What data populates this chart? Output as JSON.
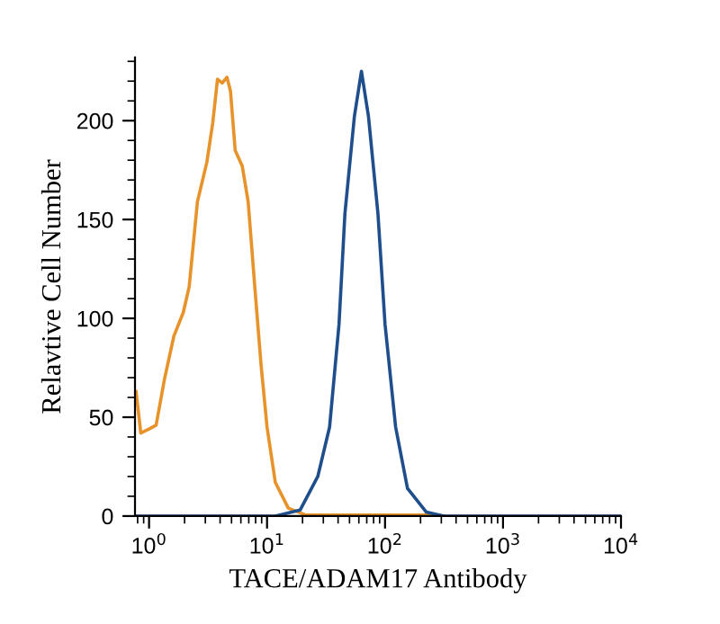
{
  "chart_data": {
    "type": "line",
    "xlabel": "TACE/ADAM17 Antibody",
    "ylabel": "Relavtive Cell Number",
    "log": "x",
    "xlim": [
      0.76,
      10000
    ],
    "ylim": [
      0,
      232
    ],
    "xticks": [
      {
        "value": 1,
        "label": "10$^{0}$"
      },
      {
        "value": 10,
        "label": "10$^{1}$"
      },
      {
        "value": 100,
        "label": "10$^{2}$"
      },
      {
        "value": 1000,
        "label": "10$^{3}$"
      },
      {
        "value": 10000,
        "label": "10$^{4}$"
      }
    ],
    "yticks": [
      0,
      50,
      100,
      150,
      200
    ],
    "grid": false,
    "legend": false,
    "marker": "none",
    "line_style": "solid",
    "series": [
      {
        "color": "#e8922a",
        "x": [
          0.776,
          0.851,
          1,
          1.148,
          1.349,
          1.622,
          1.95,
          2.188,
          2.57,
          3.09,
          3.467,
          3.802,
          4.169,
          4.571,
          4.898,
          5.37,
          6.166,
          6.918,
          7.943,
          8.913,
          10,
          11.75,
          15.14,
          21.38,
          251,
          316
        ],
        "values": [
          63,
          42,
          44,
          46,
          69,
          91,
          103,
          116,
          159,
          179,
          199,
          221,
          219,
          222,
          215,
          185,
          177,
          159,
          113,
          76,
          45,
          17,
          4,
          0.5,
          0.5,
          0
        ]
      },
      {
        "color": "#1f4e8c",
        "x": [
          0.76,
          11.75,
          19.05,
          26.92,
          33.88,
          40.74,
          45.71,
          54.95,
          63.1,
          72.44,
          87.1,
          100,
          123,
          155,
          224,
          316,
          10000
        ],
        "values": [
          0,
          0,
          3,
          20,
          45,
          97,
          153,
          202,
          225,
          202,
          153,
          97,
          45,
          14,
          2,
          0,
          0
        ]
      }
    ]
  }
}
